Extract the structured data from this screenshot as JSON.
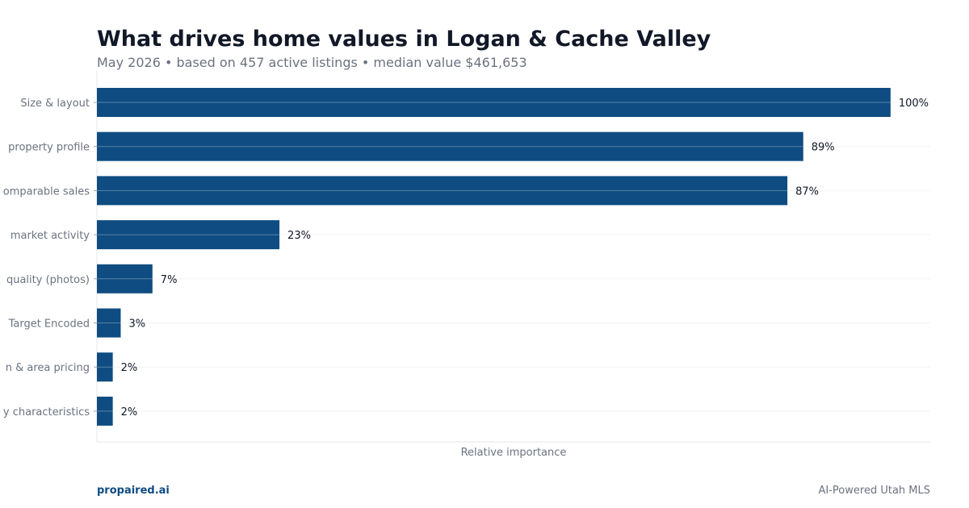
{
  "header": {
    "title": "What drives home values in Logan & Cache Valley",
    "subtitle": "May 2026 • based on 457 active listings • median value $461,653"
  },
  "footer": {
    "brand": "propaired.ai",
    "tagline": "AI-Powered Utah MLS"
  },
  "colors": {
    "bar": "#0f4c81",
    "grid": "#f1f3f5",
    "axis_text": "#6b7280",
    "label_text": "#111827"
  },
  "chart_data": {
    "type": "bar",
    "orientation": "horizontal",
    "categories": [
      "Size & layout",
      "property profile",
      "omparable sales",
      "market activity",
      "quality (photos)",
      "Target Encoded",
      "n & area pricing",
      "y characteristics"
    ],
    "values": [
      100,
      89,
      87,
      23,
      7,
      3,
      2,
      2
    ],
    "value_labels": [
      "100%",
      "89%",
      "87%",
      "23%",
      "7%",
      "3%",
      "2%",
      "2%"
    ],
    "xlabel": "Relative importance",
    "ylabel": "",
    "xlim": [
      0,
      105
    ],
    "grid": true
  }
}
